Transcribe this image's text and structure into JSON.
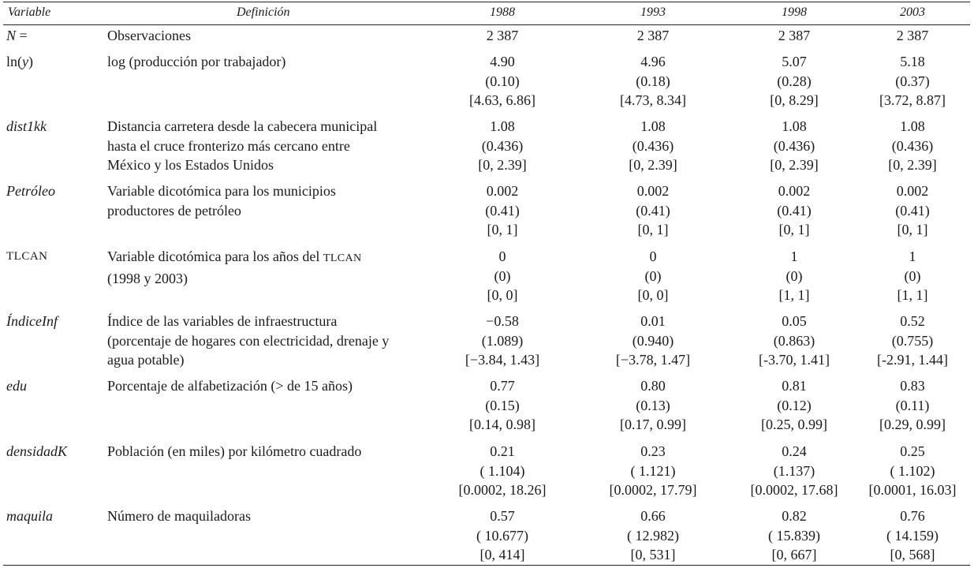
{
  "table": {
    "headers": {
      "variable": "Variable",
      "definicion": "Definición",
      "years": [
        "1988",
        "1993",
        "1998",
        "2003"
      ]
    },
    "rows": [
      {
        "variable": "N =",
        "definicion": [
          "Observaciones"
        ],
        "values": [
          [
            "2 387"
          ],
          [
            "2 387"
          ],
          [
            "2 387"
          ],
          [
            "2 387"
          ]
        ]
      },
      {
        "variable": "ln(y)",
        "definicion": [
          "log (producción por trabajador)"
        ],
        "values": [
          [
            "4.90",
            "(0.10)",
            "[4.63, 6.86]"
          ],
          [
            "4.96",
            "(0.18)",
            "[4.73, 8.34]"
          ],
          [
            "5.07",
            "(0.28)",
            "[0, 8.29]"
          ],
          [
            "5.18",
            "(0.37)",
            "[3.72, 8.87]"
          ]
        ]
      },
      {
        "variable": "dist1kk",
        "definicion": [
          "Distancia carretera desde la cabecera municipal",
          "hasta el cruce fronterizo más cercano entre",
          "México y los Estados Unidos"
        ],
        "values": [
          [
            "1.08",
            "(0.436)",
            "[0, 2.39]"
          ],
          [
            "1.08",
            "(0.436)",
            "[0, 2.39]"
          ],
          [
            "1.08",
            "(0.436)",
            "[0, 2.39]"
          ],
          [
            "1.08",
            "(0.436)",
            "[0, 2.39]"
          ]
        ]
      },
      {
        "variable": "Petróleo",
        "definicion": [
          "Variable dicotómica para los municipios",
          "productores de petróleo"
        ],
        "values": [
          [
            "0.002",
            "(0.41)",
            "[0, 1]"
          ],
          [
            "0.002",
            "(0.41)",
            "[0, 1]"
          ],
          [
            "0.002",
            "(0.41)",
            "[0, 1]"
          ],
          [
            "0.002",
            "(0.41)",
            "[0, 1]"
          ]
        ]
      },
      {
        "variable": "TLCAN",
        "definicion": [
          "Variable dicotómica para los años del TLCAN",
          "(1998 y 2003)"
        ],
        "values": [
          [
            "0",
            "(0)",
            "[0, 0]"
          ],
          [
            "0",
            "(0)",
            "[0, 0]"
          ],
          [
            "1",
            "(0)",
            "[1, 1]"
          ],
          [
            "1",
            "(0)",
            "[1, 1]"
          ]
        ]
      },
      {
        "variable": "ÍndiceInf",
        "definicion": [
          "Índice de las variables de infraestructura",
          "(porcentaje  de hogares con electricidad, drenaje y",
          "agua potable)"
        ],
        "values": [
          [
            "−0.58",
            "(1.089)",
            "[−3.84, 1.43]"
          ],
          [
            "0.01",
            "(0.940)",
            "[−3.78, 1.47]"
          ],
          [
            "0.05",
            "(0.863)",
            "[-3.70, 1.41]"
          ],
          [
            "0.52",
            "(0.755)",
            "[-2.91, 1.44]"
          ]
        ]
      },
      {
        "variable": "edu",
        "definicion": [
          "Porcentaje de alfabetización (> de 15 años)"
        ],
        "values": [
          [
            "0.77",
            "(0.15)",
            "[0.14, 0.98]"
          ],
          [
            "0.80",
            "(0.13)",
            "[0.17, 0.99]"
          ],
          [
            "0.81",
            "(0.12)",
            "[0.25, 0.99]"
          ],
          [
            "0.83",
            "(0.11)",
            "[0.29, 0.99]"
          ]
        ]
      },
      {
        "variable": "densidadK",
        "definicion": [
          "Población (en miles) por kilómetro cuadrado"
        ],
        "values": [
          [
            "0.21",
            "( 1.104)",
            "[0.0002, 18.26]"
          ],
          [
            "0.23",
            "( 1.121)",
            "[0.0002, 17.79]"
          ],
          [
            "0.24",
            "(1.137)",
            "[0.0002, 17.68]"
          ],
          [
            "0.25",
            "( 1.102)",
            "[0.0001, 16.03]"
          ]
        ]
      },
      {
        "variable": "maquila",
        "definicion": [
          "Número de maquiladoras"
        ],
        "values": [
          [
            "0.57",
            "( 10.677)",
            "[0, 414]"
          ],
          [
            "0.66",
            "( 12.982)",
            "[0, 531]"
          ],
          [
            "0.82",
            "( 15.839)",
            "[0, 667]"
          ],
          [
            "0.76",
            "( 14.159)",
            "[0, 568]"
          ]
        ]
      }
    ]
  }
}
